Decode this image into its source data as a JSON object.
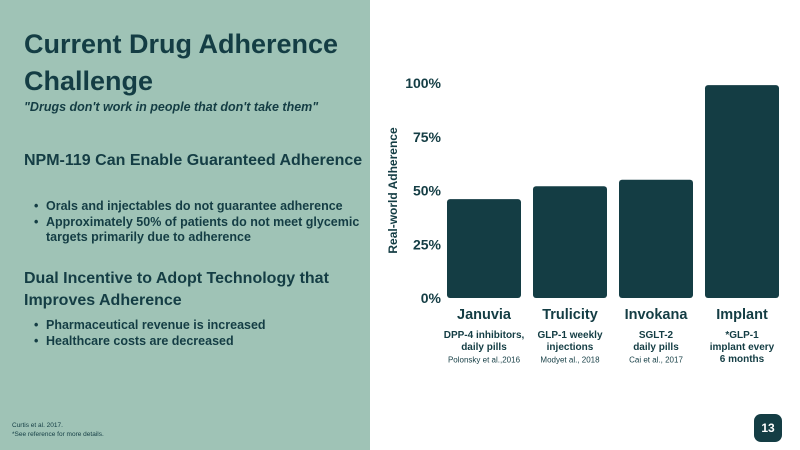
{
  "slide": {
    "title": "Current Drug Adherence Challenge",
    "quote": "\"Drugs don't work in people that don't take them\"",
    "section1": {
      "heading": "NPM-119 Can Enable Guaranteed Adherence",
      "bullets": [
        "Orals and injectables do not guarantee adherence",
        "Approximately 50% of patients do not meet glycemic targets primarily due to adherence"
      ]
    },
    "section2": {
      "heading": "Dual Incentive to Adopt Technology that Improves Adherence",
      "bullets": [
        "Pharmaceutical revenue is increased",
        "Healthcare costs are decreased"
      ]
    },
    "footnote": [
      "Curtis et al. 2017.",
      "*See reference for more details."
    ],
    "page_number": "13"
  },
  "colors": {
    "panel_bg": "#9fc3b6",
    "accent": "#143d44",
    "bar": "#143d44"
  },
  "chart_data": {
    "type": "bar",
    "title": "",
    "ylabel": "Real-world Adherence",
    "ylim": [
      0,
      100
    ],
    "yticks": [
      0,
      25,
      50,
      75,
      100
    ],
    "ytick_labels": [
      "0%",
      "25%",
      "50%",
      "75%",
      "100%"
    ],
    "grid": false,
    "categories": [
      "Januvia",
      "Trulicity",
      "Invokana",
      "Implant"
    ],
    "values": [
      46,
      52,
      55,
      99
    ],
    "descriptions": [
      [
        "DPP-4 inhibitors,",
        "daily pills"
      ],
      [
        "GLP-1 weekly",
        "injections"
      ],
      [
        "SGLT-2",
        "daily pills"
      ],
      [
        "*GLP-1",
        "implant every",
        "6 months"
      ]
    ],
    "sources": [
      "Polonsky et al.,2016",
      "Modyet al., 2018",
      "Cai et al., 2017",
      ""
    ]
  }
}
